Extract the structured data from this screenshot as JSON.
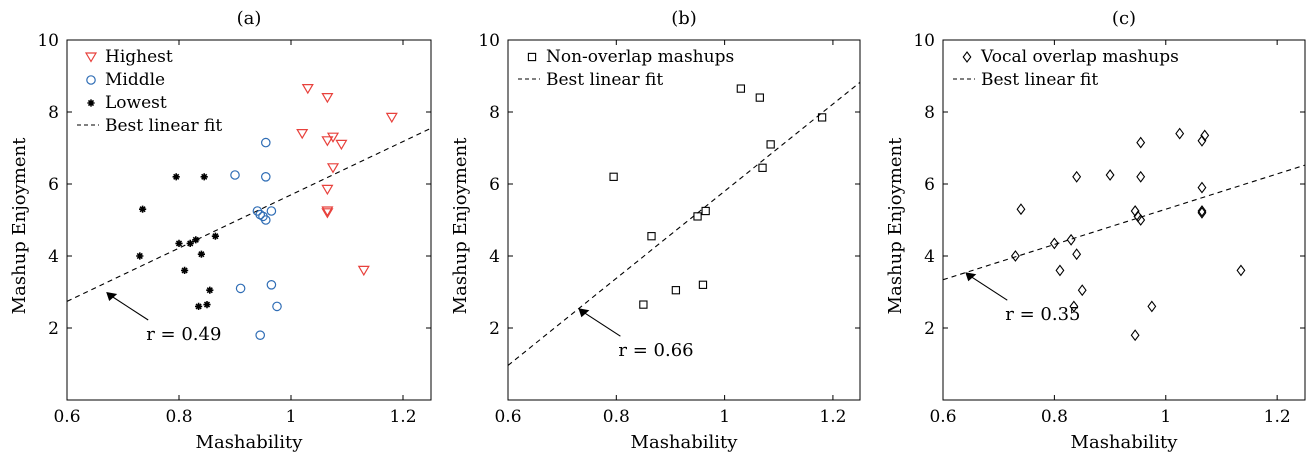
{
  "chart_data": [
    {
      "type": "scatter",
      "panel_label": "(a)",
      "xlabel": "Mashability",
      "ylabel": "Mashup Enjoyment",
      "xlim": [
        0.6,
        1.25
      ],
      "ylim": [
        0,
        10
      ],
      "xticks": [
        "0.6",
        "0.8",
        "1",
        "1.2"
      ],
      "yticks": [
        "2",
        "4",
        "6",
        "8",
        "10"
      ],
      "grid": false,
      "legend_position": "top-left",
      "series": [
        {
          "name": "Highest",
          "marker": "triangle-down",
          "color": "#e8413c",
          "x": [
            1.03,
            1.065,
            1.02,
            1.075,
            1.09,
            1.065,
            1.18,
            1.075,
            1.065,
            1.065,
            1.065,
            1.13
          ],
          "y": [
            8.65,
            8.4,
            7.4,
            7.3,
            7.1,
            7.2,
            7.85,
            6.45,
            5.85,
            5.25,
            5.2,
            3.6
          ]
        },
        {
          "name": "Middle",
          "marker": "circle",
          "color": "#2f6db5",
          "x": [
            0.955,
            0.9,
            0.955,
            0.94,
            0.945,
            0.95,
            0.965,
            0.955,
            0.91,
            0.965,
            0.975,
            0.945
          ],
          "y": [
            7.15,
            6.25,
            6.2,
            5.25,
            5.15,
            5.1,
            5.25,
            5.0,
            3.1,
            3.2,
            2.6,
            1.8
          ]
        },
        {
          "name": "Lowest",
          "marker": "asterisk",
          "color": "#000000",
          "x": [
            0.795,
            0.845,
            0.735,
            0.8,
            0.83,
            0.865,
            0.82,
            0.73,
            0.84,
            0.81,
            0.855,
            0.835,
            0.85
          ],
          "y": [
            6.2,
            6.2,
            5.3,
            4.35,
            4.45,
            4.55,
            4.35,
            4.0,
            4.05,
            3.6,
            3.05,
            2.6,
            2.65
          ]
        }
      ],
      "fit": {
        "name": "Best linear fit",
        "slope": 7.4,
        "intercept": -1.7
      },
      "annotation": {
        "text": "r = 0.49",
        "x": 0.67,
        "y": 3.0
      }
    },
    {
      "type": "scatter",
      "panel_label": "(b)",
      "xlabel": "Mashability",
      "ylabel": "Mashup Enjoyment",
      "xlim": [
        0.6,
        1.25
      ],
      "ylim": [
        0,
        10
      ],
      "xticks": [
        "0.6",
        "0.8",
        "1",
        "1.2"
      ],
      "yticks": [
        "2",
        "4",
        "6",
        "8",
        "10"
      ],
      "grid": false,
      "legend_position": "top-left",
      "series": [
        {
          "name": "Non-overlap mashups",
          "marker": "square",
          "color": "#000000",
          "x": [
            1.03,
            1.065,
            1.18,
            1.085,
            1.07,
            0.795,
            0.95,
            0.965,
            0.865,
            0.91,
            0.96,
            0.85
          ],
          "y": [
            8.65,
            8.4,
            7.85,
            7.1,
            6.45,
            6.2,
            5.1,
            5.25,
            4.55,
            3.05,
            3.2,
            2.65
          ]
        }
      ],
      "fit": {
        "name": "Best linear fit",
        "slope": 12.1,
        "intercept": -6.3
      },
      "annotation": {
        "text": "r = 0.66",
        "x": 0.73,
        "y": 2.55
      }
    },
    {
      "type": "scatter",
      "panel_label": "(c)",
      "xlabel": "Mashability",
      "ylabel": "Mashup Enjoyment",
      "xlim": [
        0.6,
        1.25
      ],
      "ylim": [
        0,
        10
      ],
      "xticks": [
        "0.6",
        "0.8",
        "1",
        "1.2"
      ],
      "yticks": [
        "2",
        "4",
        "6",
        "8",
        "10"
      ],
      "grid": false,
      "legend_position": "top-left",
      "series": [
        {
          "name": "Vocal overlap mashups",
          "marker": "diamond",
          "color": "#000000",
          "x": [
            1.025,
            1.07,
            1.065,
            0.955,
            0.9,
            0.955,
            0.84,
            0.74,
            1.065,
            0.945,
            0.95,
            0.955,
            1.065,
            1.065,
            0.8,
            0.83,
            0.73,
            0.84,
            0.81,
            1.135,
            0.85,
            0.835,
            0.975,
            0.945
          ],
          "y": [
            7.4,
            7.35,
            7.2,
            7.15,
            6.25,
            6.2,
            6.2,
            5.3,
            5.9,
            5.25,
            5.1,
            5.0,
            5.25,
            5.2,
            4.35,
            4.45,
            4.0,
            4.05,
            3.6,
            3.6,
            3.05,
            2.6,
            2.6,
            1.8
          ]
        }
      ],
      "fit": {
        "name": "Best linear fit",
        "slope": 4.9,
        "intercept": 0.4
      },
      "annotation": {
        "text": "r = 0.35",
        "x": 0.64,
        "y": 3.55
      }
    }
  ]
}
